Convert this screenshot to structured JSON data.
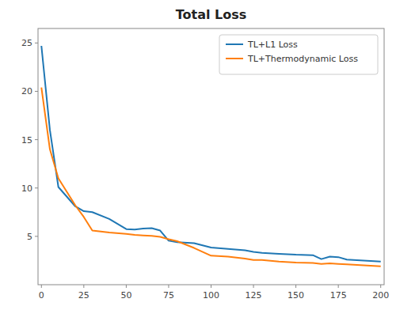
{
  "chart_data": {
    "type": "line",
    "title": "Total Loss",
    "x": [
      0,
      5,
      10,
      20,
      25,
      30,
      40,
      50,
      55,
      60,
      65,
      70,
      75,
      80,
      90,
      100,
      110,
      120,
      125,
      130,
      140,
      150,
      160,
      165,
      170,
      175,
      180,
      190,
      200
    ],
    "series": [
      {
        "name": "TL+L1 Loss",
        "color": "#1f77b4",
        "values": [
          24.7,
          16.0,
          10.1,
          8.1,
          7.6,
          7.5,
          6.8,
          5.75,
          5.7,
          5.8,
          5.85,
          5.6,
          4.55,
          4.4,
          4.3,
          3.85,
          3.7,
          3.55,
          3.4,
          3.3,
          3.2,
          3.1,
          3.05,
          2.65,
          2.9,
          2.85,
          2.6,
          2.5,
          2.4
        ]
      },
      {
        "name": "TL+Thermodynamic Loss",
        "color": "#ff7f0e",
        "values": [
          20.4,
          14.0,
          11.0,
          8.2,
          7.0,
          5.6,
          5.4,
          5.25,
          5.15,
          5.1,
          5.05,
          4.95,
          4.7,
          4.5,
          3.8,
          3.0,
          2.9,
          2.7,
          2.55,
          2.55,
          2.4,
          2.3,
          2.25,
          2.15,
          2.2,
          2.15,
          2.1,
          2.0,
          1.9
        ]
      }
    ],
    "xlim": [
      -2,
      202
    ],
    "ylim": [
      0,
      26.5
    ],
    "xticks": [
      0,
      25,
      50,
      75,
      100,
      125,
      150,
      175,
      200
    ],
    "yticks": [
      5,
      10,
      15,
      20,
      25
    ],
    "grid": false,
    "legend": "upper right"
  }
}
